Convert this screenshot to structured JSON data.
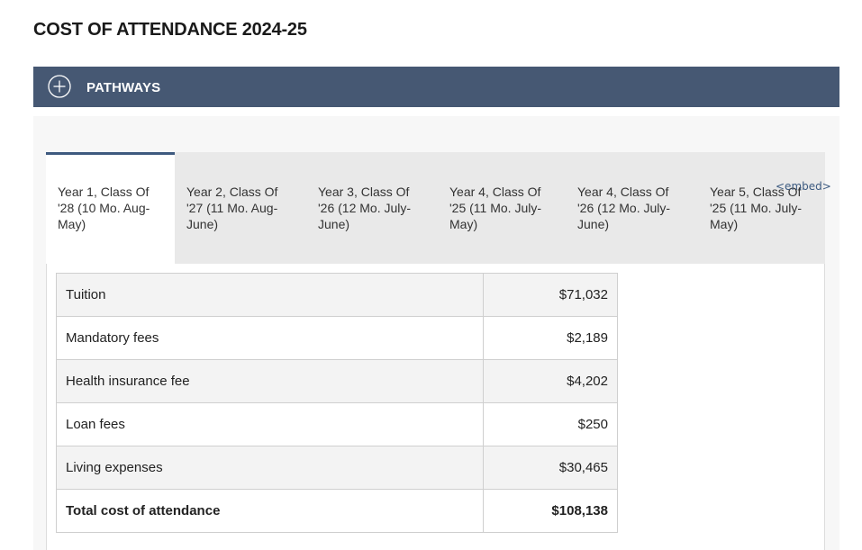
{
  "page": {
    "title": "COST OF ATTENDANCE 2024-25"
  },
  "pathways": {
    "label": "PATHWAYS",
    "icon": "plus-circle-icon"
  },
  "tabs": [
    {
      "label": "Year 1, Class Of '28 (10 Mo. Aug-May)",
      "active": true
    },
    {
      "label": "Year 2, Class Of '27 (11 Mo. Aug-June)",
      "active": false
    },
    {
      "label": "Year 3, Class Of '26 (12 Mo. July-June)",
      "active": false
    },
    {
      "label": "Year 4, Class Of '25 (11 Mo. July-May)",
      "active": false
    },
    {
      "label": "Year 4, Class Of '26 (12 Mo. July-June)",
      "active": false
    },
    {
      "label": "Year 5, Class Of '25 (11 Mo. July-May)",
      "active": false
    }
  ],
  "embed": {
    "label": "<embed>"
  },
  "cost_table": {
    "rows": [
      {
        "label": "Tuition",
        "value": "$71,032"
      },
      {
        "label": "Mandatory fees",
        "value": "$2,189"
      },
      {
        "label": "Health insurance fee",
        "value": "$4,202"
      },
      {
        "label": "Loan fees",
        "value": "$250"
      },
      {
        "label": "Living expenses",
        "value": "$30,465"
      }
    ],
    "total": {
      "label": "Total cost of attendance",
      "value": "$108,138"
    }
  },
  "colors": {
    "header_bar": "#465873",
    "active_tab_border": "#3e5a7f",
    "link": "#3c5a80"
  }
}
